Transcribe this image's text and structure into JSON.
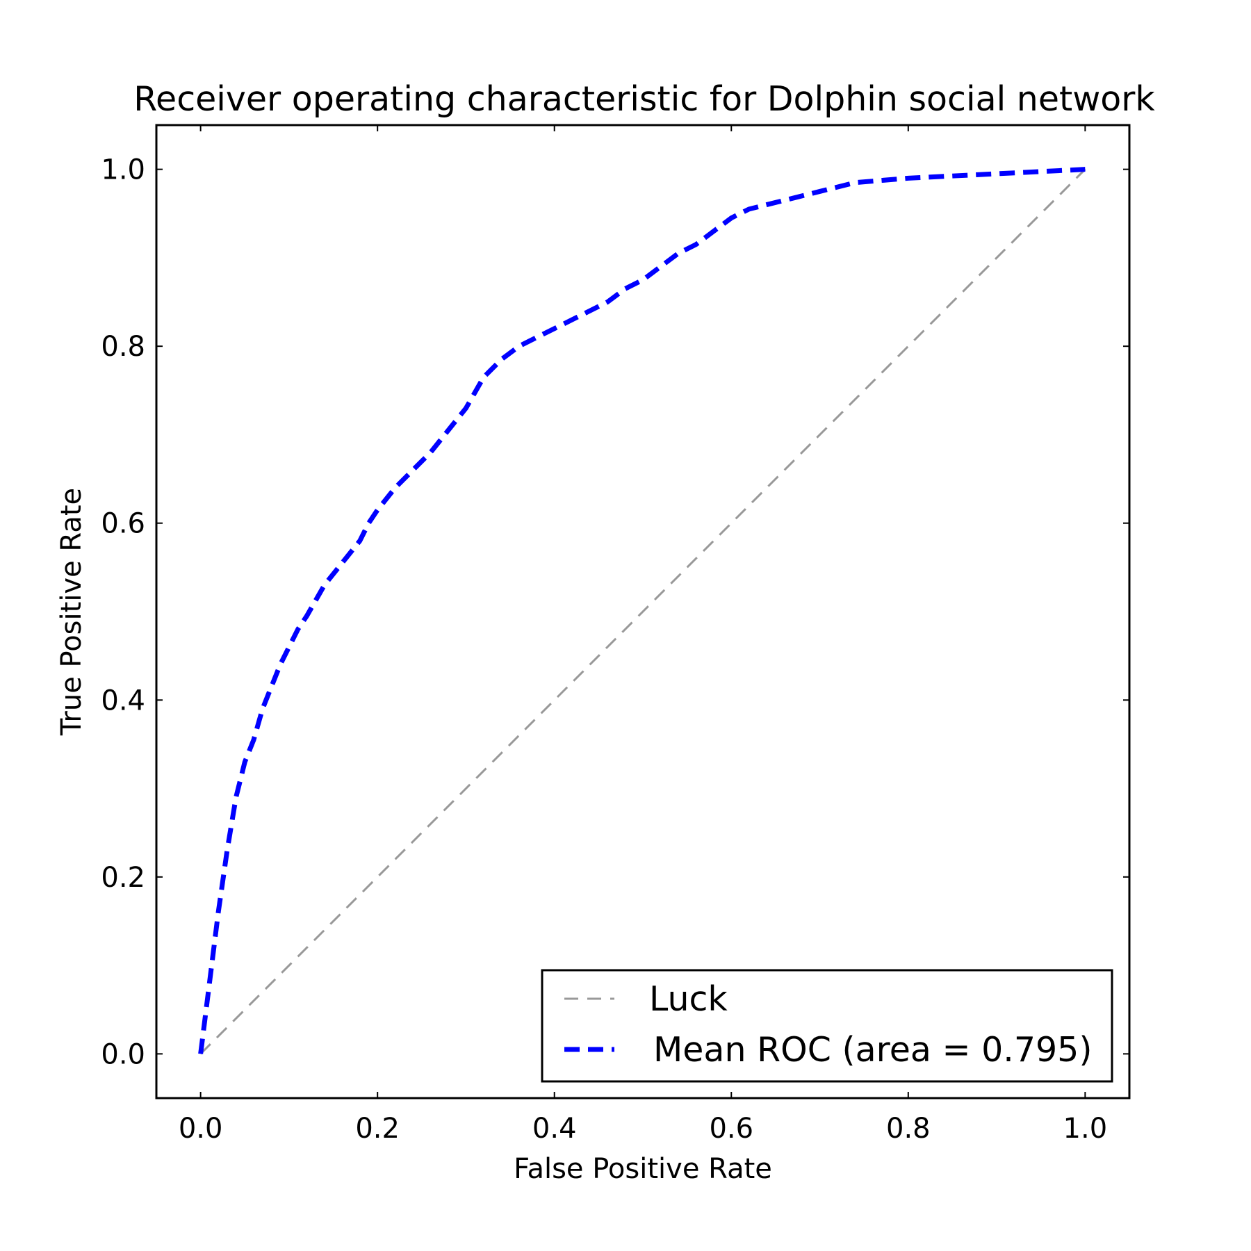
{
  "chart_data": {
    "type": "line",
    "title": "Receiver operating characteristic for Dolphin social network",
    "xlabel": "False Positive Rate",
    "ylabel": "True Positive Rate",
    "xlim": [
      -0.05,
      1.05
    ],
    "ylim": [
      -0.05,
      1.05
    ],
    "xticks": [
      "0.0",
      "0.2",
      "0.4",
      "0.6",
      "0.8",
      "1.0"
    ],
    "yticks": [
      "0.0",
      "0.2",
      "0.4",
      "0.6",
      "0.8",
      "1.0"
    ],
    "grid": false,
    "legend_position": "lower-right",
    "series": [
      {
        "name": "Luck",
        "color": "#999999",
        "style": "dashed",
        "x": [
          0,
          1
        ],
        "y": [
          0,
          1
        ]
      },
      {
        "name": "Mean ROC (area = 0.795)",
        "color": "#0000ff",
        "style": "dashed-thick",
        "x": [
          0.0,
          0.01,
          0.02,
          0.03,
          0.04,
          0.05,
          0.06,
          0.07,
          0.08,
          0.09,
          0.1,
          0.11,
          0.12,
          0.14,
          0.16,
          0.18,
          0.19,
          0.2,
          0.22,
          0.24,
          0.26,
          0.28,
          0.3,
          0.32,
          0.34,
          0.36,
          0.38,
          0.4,
          0.42,
          0.44,
          0.46,
          0.48,
          0.5,
          0.52,
          0.54,
          0.56,
          0.58,
          0.6,
          0.62,
          0.66,
          0.7,
          0.74,
          0.8,
          0.9,
          1.0
        ],
        "y": [
          0.0,
          0.08,
          0.16,
          0.23,
          0.29,
          0.33,
          0.355,
          0.39,
          0.415,
          0.44,
          0.46,
          0.48,
          0.495,
          0.53,
          0.555,
          0.58,
          0.6,
          0.615,
          0.64,
          0.66,
          0.68,
          0.705,
          0.73,
          0.765,
          0.785,
          0.8,
          0.81,
          0.82,
          0.83,
          0.84,
          0.85,
          0.865,
          0.875,
          0.89,
          0.905,
          0.915,
          0.93,
          0.945,
          0.955,
          0.965,
          0.975,
          0.985,
          0.99,
          0.995,
          1.0
        ]
      }
    ]
  }
}
